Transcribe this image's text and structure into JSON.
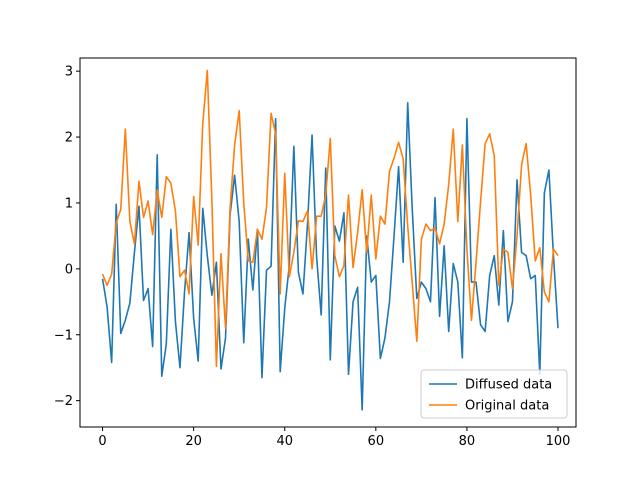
{
  "chart_data": {
    "type": "line",
    "title": "",
    "xlabel": "",
    "ylabel": "",
    "xlim": [
      -4.95,
      103.95
    ],
    "ylim": [
      -2.4,
      3.2
    ],
    "xticks": [
      0,
      20,
      40,
      60,
      80,
      100
    ],
    "yticks": [
      -2,
      -1,
      0,
      1,
      2,
      3
    ],
    "grid": false,
    "legend_position": "lower-right",
    "series": [
      {
        "name": "Diffused data",
        "color": "#1f77b4",
        "y": [
          -0.15,
          -0.58,
          -1.42,
          0.98,
          -0.98,
          -0.78,
          -0.52,
          0.25,
          0.95,
          -0.48,
          -0.3,
          -1.18,
          1.73,
          -1.63,
          -1.14,
          0.6,
          -0.8,
          -1.5,
          -0.35,
          0.55,
          -0.75,
          -1.4,
          0.92,
          0.2,
          -0.4,
          0.1,
          -1.52,
          -1.05,
          0.82,
          1.42,
          0.72,
          -1.12,
          0.45,
          -0.32,
          0.6,
          -1.65,
          -0.02,
          0.04,
          2.28,
          -1.56,
          -0.6,
          0.05,
          1.86,
          -0.05,
          -0.38,
          0.68,
          2.03,
          0.18,
          -0.7,
          1.53,
          -1.38,
          0.65,
          0.42,
          0.85,
          -1.6,
          -0.5,
          -0.28,
          -2.14,
          0.5,
          -0.2,
          -0.1,
          -1.36,
          -1.05,
          -0.5,
          0.5,
          1.55,
          0.1,
          2.52,
          0.9,
          -0.45,
          -0.2,
          -0.3,
          -0.5,
          1.08,
          -0.72,
          0.35,
          -0.95,
          0.08,
          -0.2,
          -1.35,
          2.28,
          -0.2,
          -0.2,
          -0.85,
          -0.95,
          -0.1,
          0.2,
          -0.55,
          0.58,
          -0.8,
          -0.5,
          1.35,
          0.25,
          0.2,
          -0.15,
          -0.1,
          -1.6,
          1.15,
          1.5,
          0.2,
          -0.9
        ]
      },
      {
        "name": "Original data",
        "color": "#ff7f0e",
        "y": [
          -0.08,
          -0.25,
          -0.08,
          0.7,
          0.9,
          2.12,
          0.72,
          0.38,
          1.33,
          0.78,
          1.03,
          0.52,
          1.2,
          0.78,
          1.4,
          1.3,
          0.88,
          -0.12,
          -0.02,
          -0.38,
          1.1,
          0.36,
          2.2,
          3.01,
          1.05,
          -1.48,
          0.23,
          -0.9,
          0.92,
          1.88,
          2.4,
          1.0,
          0.12,
          0.1,
          0.6,
          0.45,
          0.93,
          2.36,
          2.05,
          -0.38,
          1.45,
          -0.12,
          0.25,
          0.73,
          0.72,
          0.88,
          0.0,
          0.8,
          0.8,
          1.12,
          1.98,
          0.2,
          -0.12,
          0.05,
          1.12,
          0.02,
          0.55,
          1.2,
          0.25,
          1.12,
          0.15,
          0.8,
          0.68,
          1.48,
          1.68,
          1.92,
          1.67,
          0.65,
          -0.22,
          -1.1,
          0.45,
          0.68,
          0.58,
          0.62,
          0.38,
          0.68,
          1.28,
          2.12,
          0.72,
          1.88,
          0.3,
          -0.78,
          0.1,
          1.02,
          1.9,
          2.05,
          1.72,
          -0.25,
          0.3,
          0.25,
          -0.3,
          0.5,
          1.58,
          1.9,
          1.12,
          0.12,
          0.32,
          -0.35,
          -0.5,
          0.3,
          0.2
        ]
      }
    ]
  }
}
